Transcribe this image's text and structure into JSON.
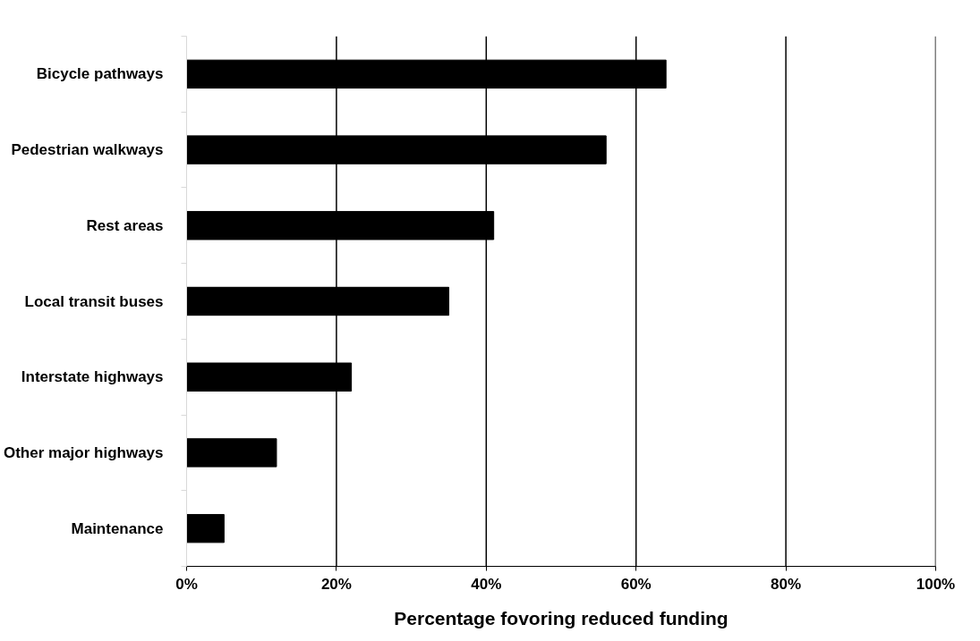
{
  "chart_data": {
    "type": "bar",
    "orientation": "horizontal",
    "categories": [
      "Bicycle pathways",
      "Pedestrian walkways",
      "Rest areas",
      "Local transit buses",
      "Interstate highways",
      "Other major highways",
      "Maintenance"
    ],
    "values": [
      64,
      56,
      41,
      35,
      22,
      12,
      5
    ],
    "color": "#000000",
    "xlabel": "Percentage fovoring reduced funding",
    "xlim": [
      0,
      100
    ],
    "xticks": [
      {
        "value": 0,
        "label": "0%"
      },
      {
        "value": 20,
        "label": "20%"
      },
      {
        "value": 40,
        "label": "40%"
      },
      {
        "value": 60,
        "label": "60%"
      },
      {
        "value": 80,
        "label": "80%"
      },
      {
        "value": 100,
        "label": "100%"
      }
    ],
    "grid": "x"
  }
}
